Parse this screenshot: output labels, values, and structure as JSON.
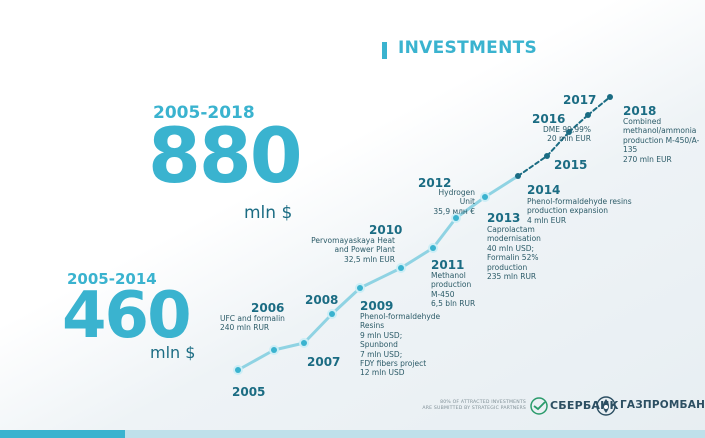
{
  "title": "INVESTMENTS",
  "totals": [
    {
      "period": "2005-2018",
      "amount": "880",
      "unit": "mln $"
    },
    {
      "period": "2005-2014",
      "amount": "460",
      "unit": "mln $"
    }
  ],
  "timeline": [
    {
      "year": "2005",
      "description": ""
    },
    {
      "year": "2006",
      "description": "UFC and formalin\n240 mln RUR"
    },
    {
      "year": "2007",
      "description": ""
    },
    {
      "year": "2008",
      "description": ""
    },
    {
      "year": "2009",
      "description": "Phenol-formaldehyde\nResins\n9 mln USD;\nSpunbond\n7 mln USD;\nFDY fibers project\n12 mln USD"
    },
    {
      "year": "2010",
      "description": "Pervomayaskaya Heat\nand Power Plant\n32,5 mln EUR"
    },
    {
      "year": "2011",
      "description": "Methanol\nproduction\nM-450\n6,5 bln RUR"
    },
    {
      "year": "2012",
      "description": "Hydrogen\nUnit\n35,9 млн €"
    },
    {
      "year": "2013",
      "description": "Caprolactam\nmodernisation\n40 mln USD;\nFormalin 52%\nproduction\n235 mln RUR"
    },
    {
      "year": "2014",
      "description": "Phenol-formaldehyde resins\nproduction expansion\n4 mln EUR"
    },
    {
      "year": "2015",
      "description": ""
    },
    {
      "year": "2016",
      "description": "DME 99,99%\n20 mln EUR"
    },
    {
      "year": "2017",
      "description": ""
    },
    {
      "year": "2018",
      "description": "Combined\nmethanol/ammonia\nproduction M-450/A-135\n270 mln EUR"
    }
  ],
  "footnote": "80% OF ATTRACTED INVESTMENTS\nARE SUBMITTED BY STRATEGIC PARTNERS",
  "banks": [
    {
      "name": "СБЕРБАНК",
      "icon": "sberbank-logo-icon"
    },
    {
      "name": "ГАЗПРОМБАНК",
      "icon": "gazprombank-logo-icon"
    }
  ],
  "colors": {
    "accent": "#3ab3cf",
    "dark": "#1b6c83",
    "line_light": "#8fd3e3",
    "line_dark": "#1b6c83"
  }
}
